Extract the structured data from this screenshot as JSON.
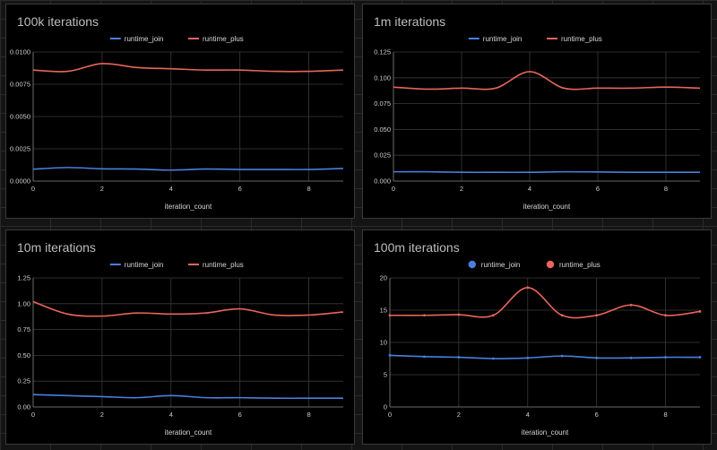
{
  "chart_data": [
    {
      "type": "line",
      "title": "100k iterations",
      "xlabel": "iteration_count",
      "ylabel": "",
      "legend_position": "top",
      "legend_marker": "line",
      "x": [
        0,
        1,
        2,
        3,
        4,
        5,
        6,
        7,
        8,
        9
      ],
      "xlim": [
        0,
        9
      ],
      "xticks": [
        "0",
        "2",
        "4",
        "6",
        "8"
      ],
      "xtick_values": [
        0,
        2,
        4,
        6,
        8
      ],
      "ylim": [
        0,
        0.01
      ],
      "yticks": [
        "0.0000",
        "0.0025",
        "0.0050",
        "0.0075",
        "0.0100"
      ],
      "ytick_values": [
        0,
        0.0025,
        0.005,
        0.0075,
        0.01
      ],
      "show_points": false,
      "series": [
        {
          "name": "runtime_join",
          "color": "#4a7fe0",
          "values": [
            0.00092,
            0.00105,
            0.00095,
            0.00093,
            0.00085,
            0.00093,
            0.0009,
            0.0009,
            0.0009,
            0.00098
          ]
        },
        {
          "name": "runtime_plus",
          "color": "#e8655a",
          "values": [
            0.0086,
            0.0085,
            0.0091,
            0.0088,
            0.0087,
            0.0086,
            0.0086,
            0.0085,
            0.0085,
            0.0086
          ]
        }
      ]
    },
    {
      "type": "line",
      "title": "1m iterations",
      "xlabel": "iteration_count",
      "ylabel": "",
      "legend_position": "top",
      "legend_marker": "line",
      "x": [
        0,
        1,
        2,
        3,
        4,
        5,
        6,
        7,
        8,
        9
      ],
      "xlim": [
        0,
        9
      ],
      "xticks": [
        "0",
        "2",
        "4",
        "6",
        "8"
      ],
      "xtick_values": [
        0,
        2,
        4,
        6,
        8
      ],
      "ylim": [
        0,
        0.125
      ],
      "yticks": [
        "0.000",
        "0.025",
        "0.050",
        "0.075",
        "0.100",
        "0.125"
      ],
      "ytick_values": [
        0,
        0.025,
        0.05,
        0.075,
        0.1,
        0.125
      ],
      "show_points": false,
      "series": [
        {
          "name": "runtime_join",
          "color": "#4a7fe0",
          "values": [
            0.009,
            0.009,
            0.0085,
            0.0085,
            0.0085,
            0.009,
            0.0088,
            0.0085,
            0.0085,
            0.0085
          ]
        },
        {
          "name": "runtime_plus",
          "color": "#e8655a",
          "values": [
            0.091,
            0.089,
            0.09,
            0.09,
            0.106,
            0.09,
            0.09,
            0.09,
            0.091,
            0.09
          ]
        }
      ]
    },
    {
      "type": "line",
      "title": "10m iterations",
      "xlabel": "iteration_count",
      "ylabel": "",
      "legend_position": "top",
      "legend_marker": "line",
      "x": [
        0,
        1,
        2,
        3,
        4,
        5,
        6,
        7,
        8,
        9
      ],
      "xlim": [
        0,
        9
      ],
      "xticks": [
        "0",
        "2",
        "4",
        "6",
        "8"
      ],
      "xtick_values": [
        0,
        2,
        4,
        6,
        8
      ],
      "ylim": [
        0,
        1.25
      ],
      "yticks": [
        "0.00",
        "0.25",
        "0.50",
        "0.75",
        "1.00",
        "1.25"
      ],
      "ytick_values": [
        0,
        0.25,
        0.5,
        0.75,
        1,
        1.25
      ],
      "show_points": false,
      "series": [
        {
          "name": "runtime_join",
          "color": "#4a7fe0",
          "values": [
            0.12,
            0.11,
            0.1,
            0.09,
            0.11,
            0.09,
            0.09,
            0.085,
            0.085,
            0.085
          ]
        },
        {
          "name": "runtime_plus",
          "color": "#e8655a",
          "values": [
            1.02,
            0.9,
            0.88,
            0.91,
            0.9,
            0.91,
            0.95,
            0.89,
            0.89,
            0.92
          ]
        }
      ]
    },
    {
      "type": "line",
      "title": "100m iterations",
      "xlabel": "iteration_count",
      "ylabel": "",
      "legend_position": "top",
      "legend_marker": "circle",
      "x": [
        0,
        1,
        2,
        3,
        4,
        5,
        6,
        7,
        8,
        9
      ],
      "xlim": [
        0,
        9
      ],
      "xticks": [
        "0",
        "2",
        "4",
        "6",
        "8"
      ],
      "xtick_values": [
        0,
        2,
        4,
        6,
        8
      ],
      "ylim": [
        0,
        20
      ],
      "yticks": [
        "0",
        "5",
        "10",
        "15",
        "20"
      ],
      "ytick_values": [
        0,
        5,
        10,
        15,
        20
      ],
      "show_points": true,
      "series": [
        {
          "name": "runtime_join",
          "color": "#4a7fe0",
          "values": [
            8.0,
            7.8,
            7.7,
            7.5,
            7.6,
            7.9,
            7.6,
            7.6,
            7.7,
            7.7
          ]
        },
        {
          "name": "runtime_plus",
          "color": "#e8655a",
          "values": [
            14.2,
            14.2,
            14.3,
            14.2,
            18.5,
            14.2,
            14.2,
            15.8,
            14.2,
            14.8
          ]
        }
      ]
    }
  ]
}
